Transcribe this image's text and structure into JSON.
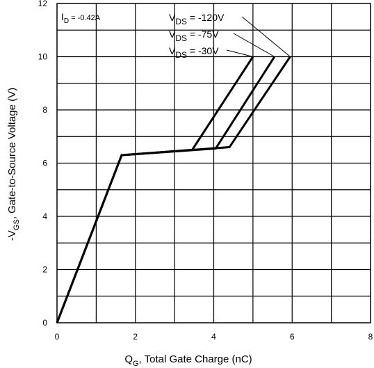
{
  "chart_data": {
    "type": "line",
    "title": "",
    "xlabel": {
      "main": "Q",
      "sub": "G",
      "rest": ", Total Gate Charge (nC)"
    },
    "ylabel": {
      "pre": "-V",
      "sub": "GS",
      "rest": ", Gate-to-Source Voltage (V)"
    },
    "xlim": [
      0,
      8
    ],
    "ylim": [
      0,
      12
    ],
    "x_ticks": [
      0,
      2,
      4,
      6,
      8
    ],
    "y_ticks": [
      0,
      2,
      4,
      6,
      8,
      10,
      12
    ],
    "x_minor_step": 1,
    "y_minor_step": 1,
    "grid": true,
    "current_annotation": {
      "main": "I",
      "sub": "D",
      "rest": " =  -0.42A"
    },
    "series": [
      {
        "name": "-120V",
        "label": {
          "main": "V",
          "sub": "DS",
          "rest": " = -120V"
        },
        "x": [
          0,
          1.65,
          4.4,
          5.95
        ],
        "y": [
          0,
          6.3,
          6.6,
          10
        ]
      },
      {
        "name": "-75V",
        "label": {
          "main": "V",
          "sub": "DS",
          "rest": " = -75V"
        },
        "x": [
          0,
          1.65,
          4.05,
          5.55
        ],
        "y": [
          0,
          6.3,
          6.55,
          10
        ]
      },
      {
        "name": "-30V",
        "label": {
          "main": "V",
          "sub": "DS",
          "rest": " = -30V"
        },
        "x": [
          0,
          1.65,
          3.45,
          5.0
        ],
        "y": [
          0,
          6.3,
          6.5,
          10
        ]
      }
    ],
    "colors": {
      "line": "#000000",
      "grid": "#000000",
      "background": "#ffffff"
    }
  }
}
